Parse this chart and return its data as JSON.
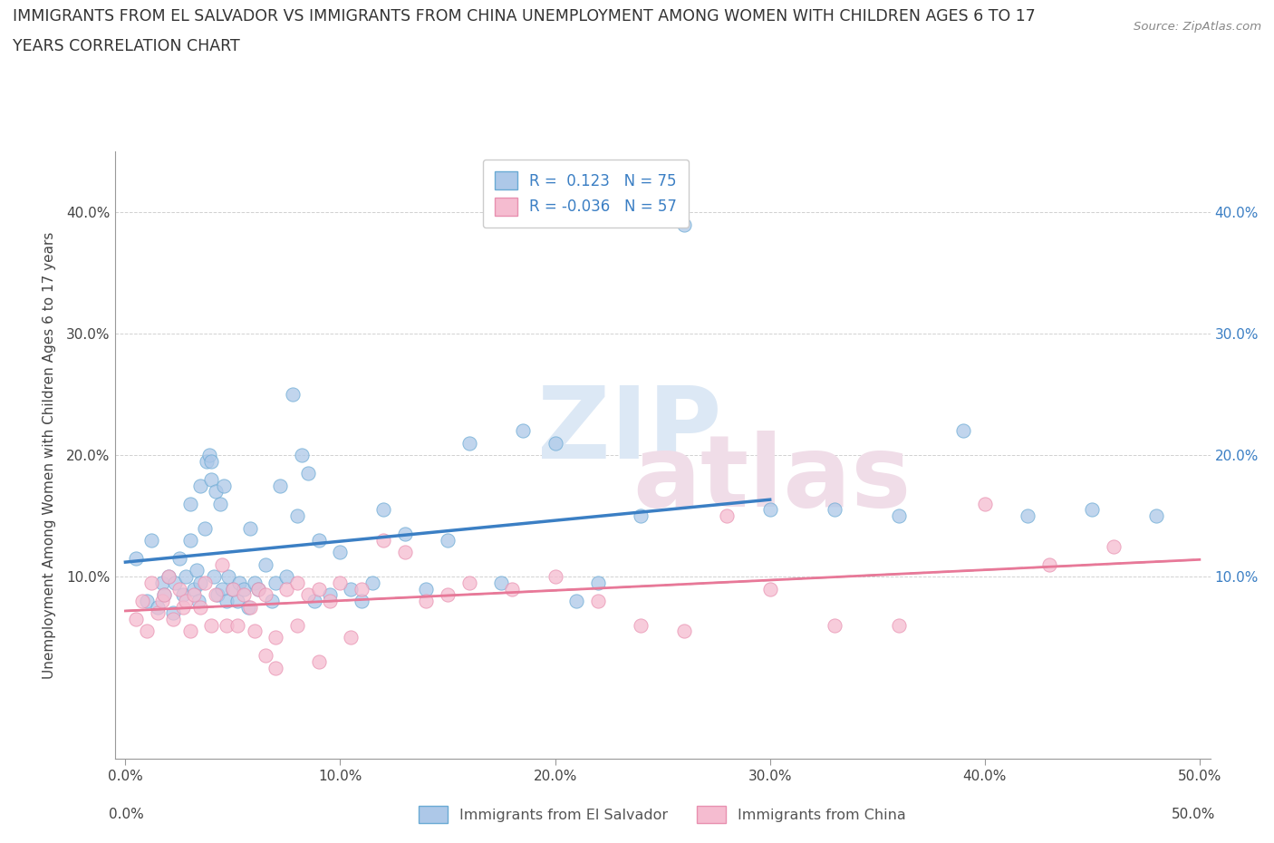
{
  "title_line1": "IMMIGRANTS FROM EL SALVADOR VS IMMIGRANTS FROM CHINA UNEMPLOYMENT AMONG WOMEN WITH CHILDREN AGES 6 TO 17",
  "title_line2": "YEARS CORRELATION CHART",
  "source": "Source: ZipAtlas.com",
  "ylabel": "Unemployment Among Women with Children Ages 6 to 17 years",
  "xlim": [
    -0.005,
    0.505
  ],
  "ylim": [
    -0.05,
    0.45
  ],
  "xticks": [
    0.0,
    0.1,
    0.2,
    0.3,
    0.4,
    0.5
  ],
  "yticks": [
    0.1,
    0.2,
    0.3,
    0.4
  ],
  "xticklabels": [
    "0.0%",
    "10.0%",
    "20.0%",
    "30.0%",
    "40.0%",
    "50.0%"
  ],
  "yticklabels_left": [
    "10.0%",
    "20.0%",
    "30.0%",
    "40.0%"
  ],
  "yticklabels_right": [
    "10.0%",
    "20.0%",
    "30.0%",
    "40.0%"
  ],
  "r_salvador": 0.123,
  "n_salvador": 75,
  "r_china": -0.036,
  "n_china": 57,
  "color_salvador": "#adc8e8",
  "color_china": "#f5bcd0",
  "edge_salvador": "#6aaad4",
  "edge_china": "#e890b0",
  "line_color_salvador": "#3b7fc4",
  "line_color_china": "#e87898",
  "watermark_zip_color": "#dce8f5",
  "watermark_atlas_color": "#f0dde8",
  "legend_label_salvador": "Immigrants from El Salvador",
  "legend_label_china": "Immigrants from China",
  "salvador_x": [
    0.005,
    0.01,
    0.012,
    0.015,
    0.017,
    0.018,
    0.02,
    0.022,
    0.023,
    0.025,
    0.027,
    0.028,
    0.03,
    0.03,
    0.032,
    0.033,
    0.034,
    0.035,
    0.035,
    0.037,
    0.038,
    0.039,
    0.04,
    0.04,
    0.041,
    0.042,
    0.043,
    0.044,
    0.045,
    0.046,
    0.047,
    0.048,
    0.05,
    0.052,
    0.053,
    0.055,
    0.057,
    0.058,
    0.06,
    0.062,
    0.065,
    0.068,
    0.07,
    0.072,
    0.075,
    0.078,
    0.08,
    0.082,
    0.085,
    0.088,
    0.09,
    0.095,
    0.1,
    0.105,
    0.11,
    0.115,
    0.12,
    0.13,
    0.14,
    0.15,
    0.16,
    0.175,
    0.185,
    0.2,
    0.21,
    0.22,
    0.24,
    0.26,
    0.3,
    0.33,
    0.36,
    0.39,
    0.42,
    0.45,
    0.48
  ],
  "salvador_y": [
    0.115,
    0.08,
    0.13,
    0.075,
    0.095,
    0.085,
    0.1,
    0.07,
    0.095,
    0.115,
    0.085,
    0.1,
    0.13,
    0.16,
    0.09,
    0.105,
    0.08,
    0.095,
    0.175,
    0.14,
    0.195,
    0.2,
    0.195,
    0.18,
    0.1,
    0.17,
    0.085,
    0.16,
    0.09,
    0.175,
    0.08,
    0.1,
    0.09,
    0.08,
    0.095,
    0.09,
    0.075,
    0.14,
    0.095,
    0.09,
    0.11,
    0.08,
    0.095,
    0.175,
    0.1,
    0.25,
    0.15,
    0.2,
    0.185,
    0.08,
    0.13,
    0.085,
    0.12,
    0.09,
    0.08,
    0.095,
    0.155,
    0.135,
    0.09,
    0.13,
    0.21,
    0.095,
    0.22,
    0.21,
    0.08,
    0.095,
    0.15,
    0.39,
    0.155,
    0.155,
    0.15,
    0.22,
    0.15,
    0.155,
    0.15
  ],
  "china_x": [
    0.005,
    0.008,
    0.01,
    0.012,
    0.015,
    0.017,
    0.018,
    0.02,
    0.022,
    0.025,
    0.027,
    0.028,
    0.03,
    0.032,
    0.035,
    0.037,
    0.04,
    0.042,
    0.045,
    0.047,
    0.05,
    0.052,
    0.055,
    0.058,
    0.06,
    0.062,
    0.065,
    0.07,
    0.075,
    0.08,
    0.085,
    0.09,
    0.095,
    0.1,
    0.105,
    0.11,
    0.12,
    0.13,
    0.14,
    0.15,
    0.16,
    0.18,
    0.2,
    0.22,
    0.24,
    0.26,
    0.28,
    0.3,
    0.33,
    0.36,
    0.4,
    0.43,
    0.46,
    0.065,
    0.07,
    0.08,
    0.09
  ],
  "china_y": [
    0.065,
    0.08,
    0.055,
    0.095,
    0.07,
    0.08,
    0.085,
    0.1,
    0.065,
    0.09,
    0.075,
    0.08,
    0.055,
    0.085,
    0.075,
    0.095,
    0.06,
    0.085,
    0.11,
    0.06,
    0.09,
    0.06,
    0.085,
    0.075,
    0.055,
    0.09,
    0.085,
    0.05,
    0.09,
    0.095,
    0.085,
    0.09,
    0.08,
    0.095,
    0.05,
    0.09,
    0.13,
    0.12,
    0.08,
    0.085,
    0.095,
    0.09,
    0.1,
    0.08,
    0.06,
    0.055,
    0.15,
    0.09,
    0.06,
    0.06,
    0.16,
    0.11,
    0.125,
    0.035,
    0.025,
    0.06,
    0.03
  ]
}
